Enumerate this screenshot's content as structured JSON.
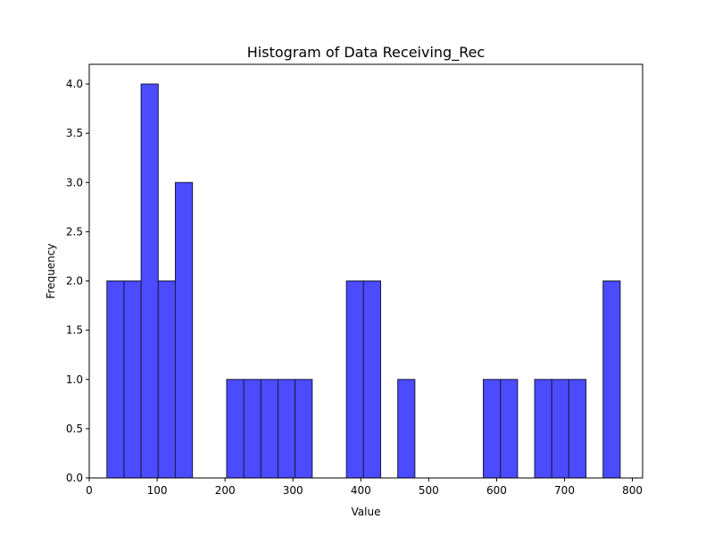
{
  "chart_data": {
    "type": "bar",
    "subtype": "histogram",
    "title": "Histogram of Data Receiving_Rec",
    "xlabel": "Value",
    "ylabel": "Frequency",
    "xlim": [
      0,
      815
    ],
    "ylim": [
      0,
      4.2
    ],
    "x_ticks": [
      0,
      100,
      200,
      300,
      400,
      500,
      600,
      700,
      800
    ],
    "y_ticks": [
      0.0,
      0.5,
      1.0,
      1.5,
      2.0,
      2.5,
      3.0,
      3.5,
      4.0
    ],
    "x_tick_labels": [
      "0",
      "100",
      "200",
      "300",
      "400",
      "500",
      "600",
      "700",
      "800"
    ],
    "y_tick_labels": [
      "0.0",
      "0.5",
      "1.0",
      "1.5",
      "2.0",
      "2.5",
      "3.0",
      "3.5",
      "4.0"
    ],
    "bin_start": 26,
    "bin_width": 25.2,
    "bin_count": 30,
    "values": [
      2,
      2,
      4,
      2,
      3,
      0,
      0,
      1,
      1,
      1,
      1,
      1,
      0,
      0,
      2,
      2,
      0,
      1,
      0,
      0,
      0,
      0,
      1,
      1,
      0,
      1,
      1,
      1,
      0,
      2
    ],
    "bar_color": "#4b4bff",
    "edge_color": "#1a1a40",
    "grid": false
  }
}
